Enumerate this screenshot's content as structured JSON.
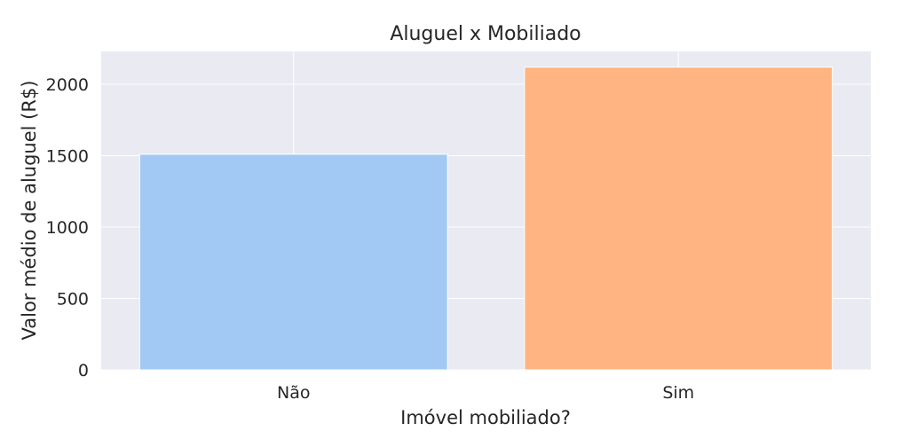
{
  "chart_data": {
    "type": "bar",
    "title": "Aluguel x Mobiliado",
    "xlabel": "Imóvel mobiliado?",
    "ylabel": "Valor médio de aluguel (R$)",
    "categories": [
      "Não",
      "Sim"
    ],
    "values": [
      1510,
      2120
    ],
    "colors": [
      "#a1c9f4",
      "#ffb482"
    ],
    "ylim": [
      0,
      2230
    ],
    "yticks": [
      0,
      500,
      1000,
      1500,
      2000
    ],
    "background": "#eaeaf2",
    "grid": true
  }
}
